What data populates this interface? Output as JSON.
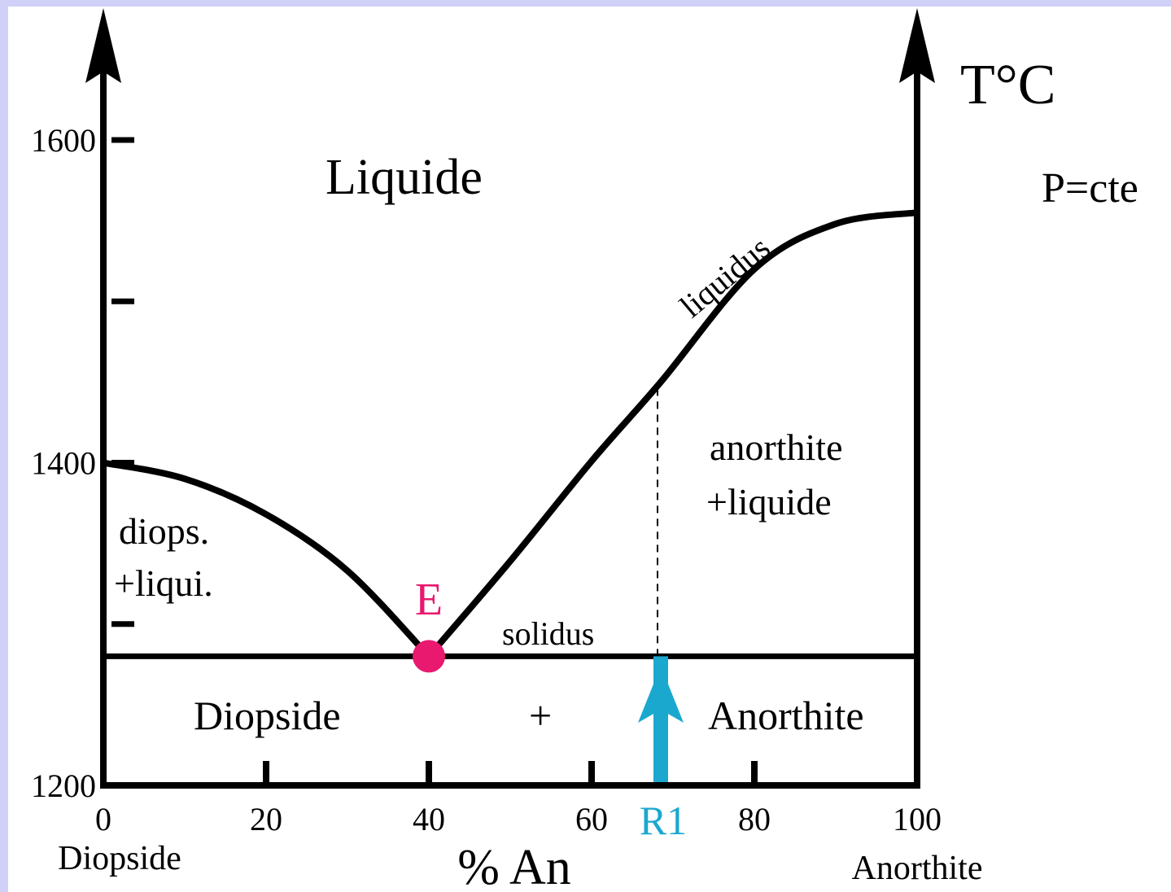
{
  "chart_data": {
    "type": "line",
    "x_label": "% An",
    "y_label": "T°C",
    "note": "P=cte",
    "xlim": [
      0,
      100
    ],
    "ylim": [
      1200,
      1600
    ],
    "xticks": [
      0,
      20,
      40,
      60,
      80,
      100
    ],
    "yticks": [
      1200,
      1400,
      1600
    ],
    "minor_yticks": [
      1300,
      1500
    ],
    "end_labels": [
      "Diopside",
      "Anorthite"
    ],
    "liquidus": {
      "label": "liquidus",
      "color": "#000000",
      "left": {
        "x": [
          0,
          10,
          20,
          30,
          40
        ],
        "values": [
          1400,
          1390,
          1368,
          1333,
          1280
        ]
      },
      "right": {
        "x": [
          40,
          50,
          60,
          68.5,
          80,
          90,
          100
        ],
        "values": [
          1280,
          1339,
          1401,
          1450,
          1520,
          1548,
          1555
        ]
      }
    },
    "solidus": {
      "label": "solidus",
      "value": 1280,
      "color": "#000000"
    },
    "eutectic": {
      "label": "E",
      "x": 40,
      "value": 1280,
      "color": "#e8196e"
    },
    "r1": {
      "label": "R1",
      "x": 68.5,
      "color": "#1ba8cf"
    },
    "regions": [
      "Liquide",
      "diops.",
      "+liqui.",
      "anorthite",
      "+liquide",
      "Diopside",
      "+",
      "Anorthite"
    ]
  }
}
